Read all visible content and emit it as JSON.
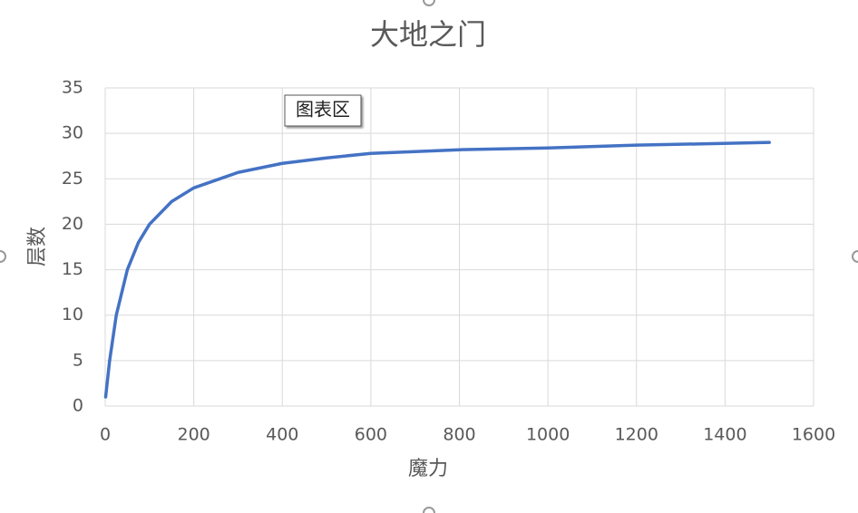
{
  "chart_data": {
    "type": "line",
    "title": "大地之门",
    "x_label": "魔力",
    "y_label": "层数",
    "tooltip": "图表区",
    "x": [
      1,
      10,
      25,
      50,
      75,
      100,
      150,
      200,
      300,
      400,
      500,
      600,
      800,
      1000,
      1200,
      1500
    ],
    "series": [
      {
        "name": "层数",
        "color": "#4472c4",
        "values": [
          1,
          5,
          10,
          15,
          18,
          20,
          22.5,
          24,
          25.7,
          26.7,
          27.3,
          27.8,
          28.2,
          28.4,
          28.7,
          29
        ]
      }
    ],
    "xlim": [
      0,
      1600
    ],
    "xticks": [
      0,
      200,
      400,
      600,
      800,
      1000,
      1200,
      1400,
      1600
    ],
    "ylim": [
      0,
      35
    ],
    "yticks": [
      0,
      5,
      10,
      15,
      20,
      25,
      30,
      35
    ],
    "grid": true
  }
}
